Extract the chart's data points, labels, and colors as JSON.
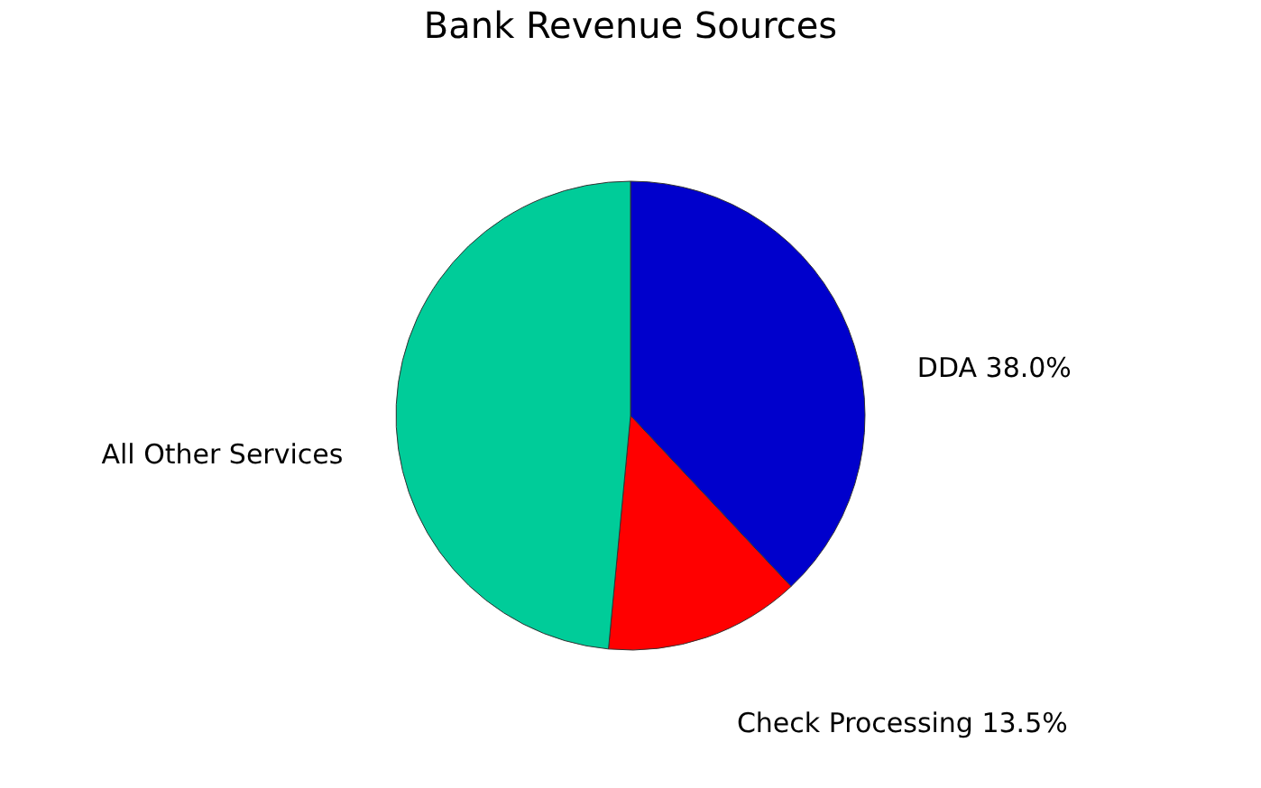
{
  "chart_data": {
    "type": "pie",
    "title": "Bank Revenue Sources",
    "categories": [
      "DDA",
      "Check Processing",
      "All Other Services"
    ],
    "values": [
      38.0,
      13.5,
      48.5
    ],
    "value_labels": [
      "38.0%",
      "13.5%",
      null
    ],
    "colors": [
      "#0000cc",
      "#ff0000",
      "#00cc99"
    ],
    "legend": false
  }
}
